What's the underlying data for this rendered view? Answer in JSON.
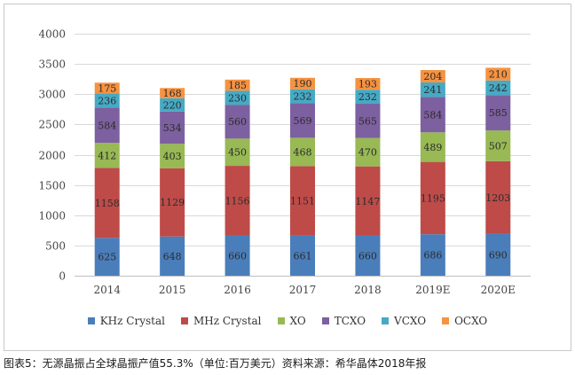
{
  "chart_data": {
    "type": "bar",
    "stacked": true,
    "title": "",
    "xlabel": "",
    "ylabel": "",
    "ylim": [
      0,
      4000
    ],
    "yticks": [
      0,
      500,
      1000,
      1500,
      2000,
      2500,
      3000,
      3500,
      4000
    ],
    "grid": "horizontal",
    "legend_position": "bottom",
    "categories": [
      "2014",
      "2015",
      "2016",
      "2017",
      "2018",
      "2019E",
      "2020E"
    ],
    "series": [
      {
        "name": "KHz Crystal",
        "color": "#4a7ebb",
        "values": [
          625,
          648,
          660,
          661,
          660,
          686,
          690
        ]
      },
      {
        "name": "MHz Crystal",
        "color": "#be4b48",
        "values": [
          1158,
          1129,
          1156,
          1151,
          1147,
          1195,
          1203
        ]
      },
      {
        "name": "XO",
        "color": "#98b954",
        "values": [
          412,
          403,
          450,
          468,
          470,
          489,
          507
        ]
      },
      {
        "name": "TCXO",
        "color": "#7d60a0",
        "values": [
          584,
          534,
          560,
          569,
          565,
          584,
          585
        ]
      },
      {
        "name": "VCXO",
        "color": "#46aac5",
        "values": [
          236,
          220,
          230,
          232,
          232,
          241,
          242
        ]
      },
      {
        "name": "OCXO",
        "color": "#f69240",
        "values": [
          175,
          168,
          185,
          190,
          193,
          204,
          210
        ]
      }
    ]
  },
  "caption": "图表5：无源晶振占全球晶振产值55.3%（单位:百万美元）资料来源：希华晶体2018年报"
}
